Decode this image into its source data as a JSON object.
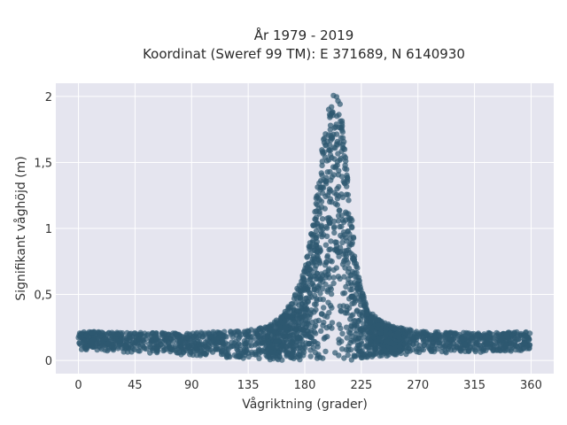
{
  "chart_data": {
    "type": "scatter",
    "title_line1": "År 1979 - 2019",
    "title_line2": "Koordinat (Sweref 99 TM): E 371689, N 6140930",
    "xlabel": "Vågriktning (grader)",
    "ylabel": "Signifikant våghöjd (m)",
    "xlim": [
      -18,
      378
    ],
    "ylim": [
      -0.1,
      2.1
    ],
    "xticks": [
      0,
      45,
      90,
      135,
      180,
      225,
      270,
      315,
      360
    ],
    "yticks": [
      0,
      0.5,
      1,
      1.5,
      2
    ],
    "ytick_labels": [
      "0",
      "0,5",
      "1",
      "1,5",
      "2"
    ],
    "grid": true,
    "point_color": "#2e5871",
    "background_color": "#e5e5ef",
    "envelope": {
      "description": "Upper and lower bounds of the dense point cloud by direction",
      "x": [
        0,
        45,
        90,
        120,
        135,
        150,
        160,
        170,
        180,
        185,
        190,
        195,
        200,
        203,
        205,
        208,
        210,
        215,
        220,
        225,
        230,
        240,
        250,
        270,
        300,
        330,
        360
      ],
      "upper": [
        0.22,
        0.21,
        0.21,
        0.22,
        0.23,
        0.26,
        0.32,
        0.45,
        0.7,
        0.95,
        1.3,
        1.7,
        1.95,
        2.03,
        2.05,
        1.95,
        1.8,
        1.3,
        0.85,
        0.55,
        0.4,
        0.3,
        0.26,
        0.22,
        0.21,
        0.21,
        0.22
      ],
      "lower": [
        0.08,
        0.06,
        0.04,
        0.02,
        0.01,
        0.0,
        0.0,
        0.0,
        0.0,
        0.0,
        0.0,
        0.0,
        0.0,
        0.0,
        0.0,
        0.0,
        0.0,
        0.0,
        0.0,
        0.01,
        0.02,
        0.03,
        0.04,
        0.05,
        0.06,
        0.06,
        0.08
      ]
    }
  }
}
